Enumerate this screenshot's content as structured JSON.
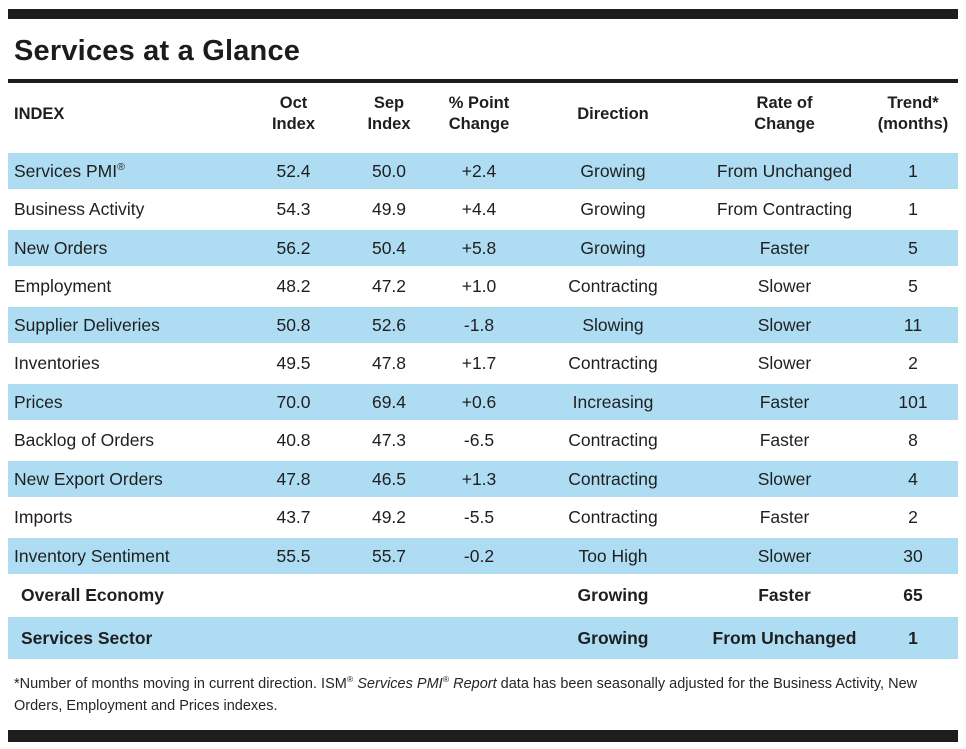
{
  "title": "Services at a Glance",
  "colors": {
    "row_highlight_blue": "#aedcf3",
    "rule_black": "#1d1d1b",
    "text": "#1f1f1f"
  },
  "reg_mark": "®",
  "header": {
    "index": "INDEX",
    "oct": [
      "Oct",
      "Index"
    ],
    "sep": [
      "Sep",
      "Index"
    ],
    "pct": [
      "% Point",
      "Change"
    ],
    "direction": "Direction",
    "rate": [
      "Rate of",
      "Change"
    ],
    "trend": [
      "Trend*",
      "(months)"
    ]
  },
  "table": {
    "rows": [
      {
        "label": "Services PMI",
        "reg": "®",
        "oct": "52.4",
        "sep": "50.0",
        "change": "+2.4",
        "direction": "Growing",
        "rate": "From Unchanged",
        "trend": "1"
      },
      {
        "label": "Business Activity",
        "oct": "54.3",
        "sep": "49.9",
        "change": "+4.4",
        "direction": "Growing",
        "rate": "From Contracting",
        "trend": "1"
      },
      {
        "label": "New Orders",
        "oct": "56.2",
        "sep": "50.4",
        "change": "+5.8",
        "direction": "Growing",
        "rate": "Faster",
        "trend": "5"
      },
      {
        "label": "Employment",
        "oct": "48.2",
        "sep": "47.2",
        "change": "+1.0",
        "direction": "Contracting",
        "rate": "Slower",
        "trend": "5"
      },
      {
        "label": "Supplier Deliveries",
        "oct": "50.8",
        "sep": "52.6",
        "change": "-1.8",
        "direction": "Slowing",
        "rate": "Slower",
        "trend": "11"
      },
      {
        "label": "Inventories",
        "oct": "49.5",
        "sep": "47.8",
        "change": "+1.7",
        "direction": "Contracting",
        "rate": "Slower",
        "trend": "2"
      },
      {
        "label": "Prices",
        "oct": "70.0",
        "sep": "69.4",
        "change": "+0.6",
        "direction": "Increasing",
        "rate": "Faster",
        "trend": "101"
      },
      {
        "label": "Backlog of Orders",
        "oct": "40.8",
        "sep": "47.3",
        "change": "-6.5",
        "direction": "Contracting",
        "rate": "Faster",
        "trend": "8"
      },
      {
        "label": "New Export Orders",
        "oct": "47.8",
        "sep": "46.5",
        "change": "+1.3",
        "direction": "Contracting",
        "rate": "Slower",
        "trend": "4"
      },
      {
        "label": "Imports",
        "oct": "43.7",
        "sep": "49.2",
        "change": "-5.5",
        "direction": "Contracting",
        "rate": "Faster",
        "trend": "2"
      },
      {
        "label": "Inventory Sentiment",
        "oct": "55.5",
        "sep": "55.7",
        "change": "-0.2",
        "direction": "Too High",
        "rate": "Slower",
        "trend": "30"
      },
      {
        "label": "Overall Economy",
        "oct": "",
        "sep": "",
        "change": "",
        "direction": "Growing",
        "rate": "Faster",
        "trend": "65"
      },
      {
        "label": "Services Sector",
        "oct": "",
        "sep": "",
        "change": "",
        "direction": "Growing",
        "rate": "From Unchanged",
        "trend": "1"
      }
    ]
  },
  "footnote": {
    "part1": "*Number of months moving in current direction. ISM",
    "reg1": "®",
    "italic1": " Services PMI",
    "reg2": "®",
    "italic2": " Report",
    "part2": " data has been seasonally adjusted for the Business Activity, New Orders, Employment and Prices indexes."
  }
}
